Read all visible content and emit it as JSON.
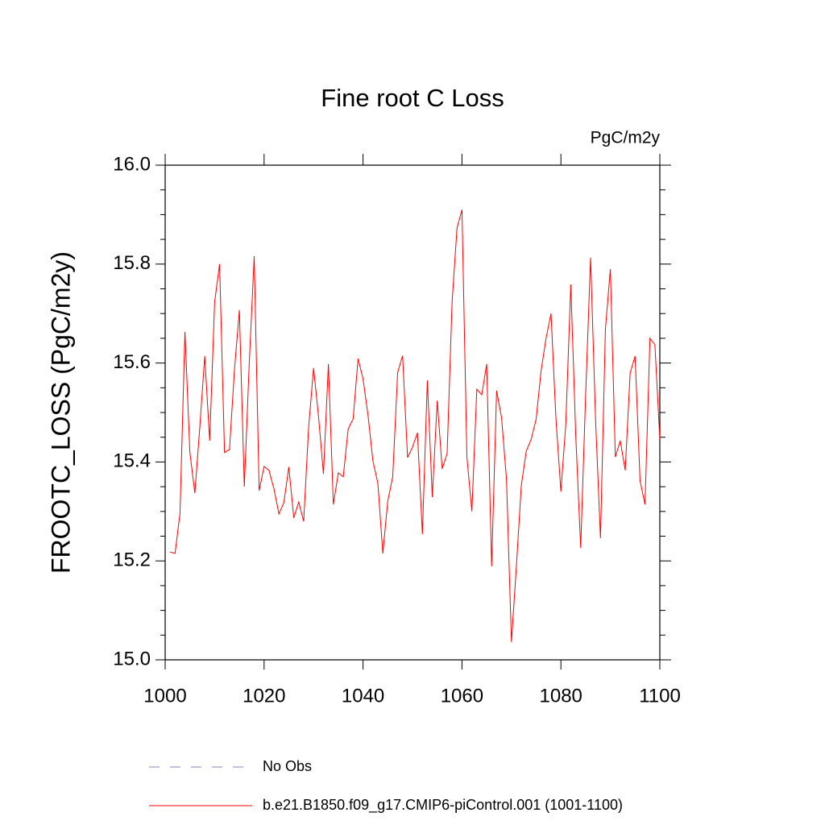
{
  "chart_data": {
    "type": "line",
    "title": "Fine root C Loss",
    "units": "PgC/m2y",
    "ylabel": "FROOTC_LOSS  (PgC/m2y)",
    "x": [
      1001,
      1002,
      1003,
      1004,
      1005,
      1006,
      1007,
      1008,
      1009,
      1010,
      1011,
      1012,
      1013,
      1014,
      1015,
      1016,
      1017,
      1018,
      1019,
      1020,
      1021,
      1022,
      1023,
      1024,
      1025,
      1026,
      1027,
      1028,
      1029,
      1030,
      1031,
      1032,
      1033,
      1034,
      1035,
      1036,
      1037,
      1038,
      1039,
      1040,
      1041,
      1042,
      1043,
      1044,
      1045,
      1046,
      1047,
      1048,
      1049,
      1050,
      1051,
      1052,
      1053,
      1054,
      1055,
      1056,
      1057,
      1058,
      1059,
      1060,
      1061,
      1062,
      1063,
      1064,
      1065,
      1066,
      1067,
      1068,
      1069,
      1070,
      1071,
      1072,
      1073,
      1074,
      1075,
      1076,
      1077,
      1078,
      1079,
      1080,
      1081,
      1082,
      1083,
      1084,
      1085,
      1086,
      1087,
      1088,
      1089,
      1090,
      1091,
      1092,
      1093,
      1094,
      1095,
      1096,
      1097,
      1098,
      1099,
      1100
    ],
    "series": [
      {
        "name": "b.e21.B1850.f09_g17.CMIP6-piControl.001 (1001-1100)",
        "color": "#ff0000",
        "values": [
          15.218,
          15.215,
          15.296,
          15.663,
          15.419,
          15.337,
          15.47,
          15.614,
          15.443,
          15.723,
          15.8,
          15.419,
          15.425,
          15.585,
          15.707,
          15.35,
          15.6,
          15.816,
          15.342,
          15.391,
          15.383,
          15.345,
          15.295,
          15.318,
          15.39,
          15.287,
          15.319,
          15.28,
          15.47,
          15.59,
          15.492,
          15.376,
          15.598,
          15.314,
          15.378,
          15.37,
          15.467,
          15.487,
          15.609,
          15.568,
          15.495,
          15.402,
          15.357,
          15.215,
          15.321,
          15.37,
          15.581,
          15.615,
          15.409,
          15.43,
          15.459,
          15.254,
          15.565,
          15.329,
          15.524,
          15.386,
          15.417,
          15.723,
          15.873,
          15.91,
          15.41,
          15.3,
          15.547,
          15.536,
          15.598,
          15.189,
          15.544,
          15.49,
          15.365,
          15.036,
          15.189,
          15.353,
          15.422,
          15.446,
          15.487,
          15.585,
          15.65,
          15.7,
          15.487,
          15.34,
          15.479,
          15.759,
          15.454,
          15.226,
          15.536,
          15.813,
          15.487,
          15.246,
          15.669,
          15.79,
          15.41,
          15.443,
          15.383,
          15.58,
          15.614,
          15.362,
          15.314,
          15.65,
          15.637,
          15.446
        ]
      }
    ],
    "legend": [
      {
        "name": "No Obs",
        "color": "#8c7fc9",
        "dash": "13 13"
      }
    ],
    "xlim": [
      1000,
      1100
    ],
    "xticks": [
      1000,
      1020,
      1040,
      1060,
      1080,
      1100
    ],
    "ylim": [
      15.0,
      16.0
    ],
    "yticks": [
      {
        "value": 15.0,
        "label": "15.0"
      },
      {
        "value": 15.2,
        "label": "15.2"
      },
      {
        "value": 15.4,
        "label": "15.4"
      },
      {
        "value": 15.6,
        "label": "15.6"
      },
      {
        "value": 15.8,
        "label": "15.8"
      },
      {
        "value": 16.0,
        "label": "16.0"
      }
    ],
    "yminorticks": [
      15.05,
      15.1,
      15.15,
      15.25,
      15.3,
      15.35,
      15.45,
      15.5,
      15.55,
      15.65,
      15.7,
      15.75,
      15.85,
      15.9,
      15.95
    ],
    "grid": false
  }
}
